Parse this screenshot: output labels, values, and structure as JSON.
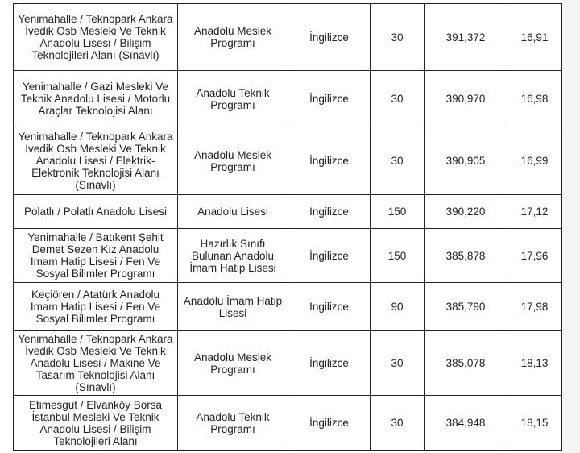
{
  "rows": [
    {
      "school": "Yenimahalle / Teknopark Ankara İvedik Osb Mesleki Ve Teknik Anadolu Lisesi / Bilişim Teknolojileri Alanı (Sınavlı)",
      "type": "Anadolu Meslek Programı",
      "language": "İngilizce",
      "quota": "30",
      "score": "391,372",
      "percentile": "16,91"
    },
    {
      "school": "Yenimahalle / Gazi Mesleki Ve Teknik Anadolu Lisesi / Motorlu Araçlar Teknolojisi Alanı",
      "type": "Anadolu Teknik Programı",
      "language": "İngilizce",
      "quota": "30",
      "score": "390,970",
      "percentile": "16,98"
    },
    {
      "school": "Yenimahalle / Teknopark Ankara İvedik Osb Mesleki Ve Teknik Anadolu Lisesi / Elektrik-Elektronik Teknolojisi Alanı (Sınavlı)",
      "type": "Anadolu Meslek Programı",
      "language": "İngilizce",
      "quota": "30",
      "score": "390,905",
      "percentile": "16,99"
    },
    {
      "school": "Polatlı / Polatlı Anadolu Lisesi",
      "type": "Anadolu Lisesi",
      "language": "İngilizce",
      "quota": "150",
      "score": "390,220",
      "percentile": "17,12"
    },
    {
      "school": "Yenimahalle / Batıkent Şehit Demet Sezen Kız Anadolu İmam Hatip Lisesi / Fen Ve Sosyal Bilimler Programı",
      "type": "Hazırlık Sınıfı Bulunan Anadolu İmam Hatip Lisesi",
      "language": "İngilizce",
      "quota": "150",
      "score": "385,878",
      "percentile": "17,96"
    },
    {
      "school": "Keçiören / Atatürk Anadolu İmam Hatip Lisesi / Fen Ve Sosyal Bilimler Programı",
      "type": "Anadolu İmam Hatip Lisesi",
      "language": "İngilizce",
      "quota": "90",
      "score": "385,790",
      "percentile": "17,98"
    },
    {
      "school": "Yenimahalle / Teknopark Ankara İvedik Osb Mesleki Ve Teknik Anadolu Lisesi / Makine Ve Tasarım Teknolojisi Alanı (Sınavlı)",
      "type": "Anadolu Meslek Programı",
      "language": "İngilizce",
      "quota": "30",
      "score": "385,078",
      "percentile": "18,13"
    },
    {
      "school": "Etimesgut / Elvanköy Borsa İstanbul Mesleki Ve Teknik Anadolu Lisesi / Bilişim Teknolojileri Alanı",
      "type": "Anadolu Teknik Programı",
      "language": "İngilizce",
      "quota": "30",
      "score": "384,948",
      "percentile": "18,15"
    }
  ]
}
